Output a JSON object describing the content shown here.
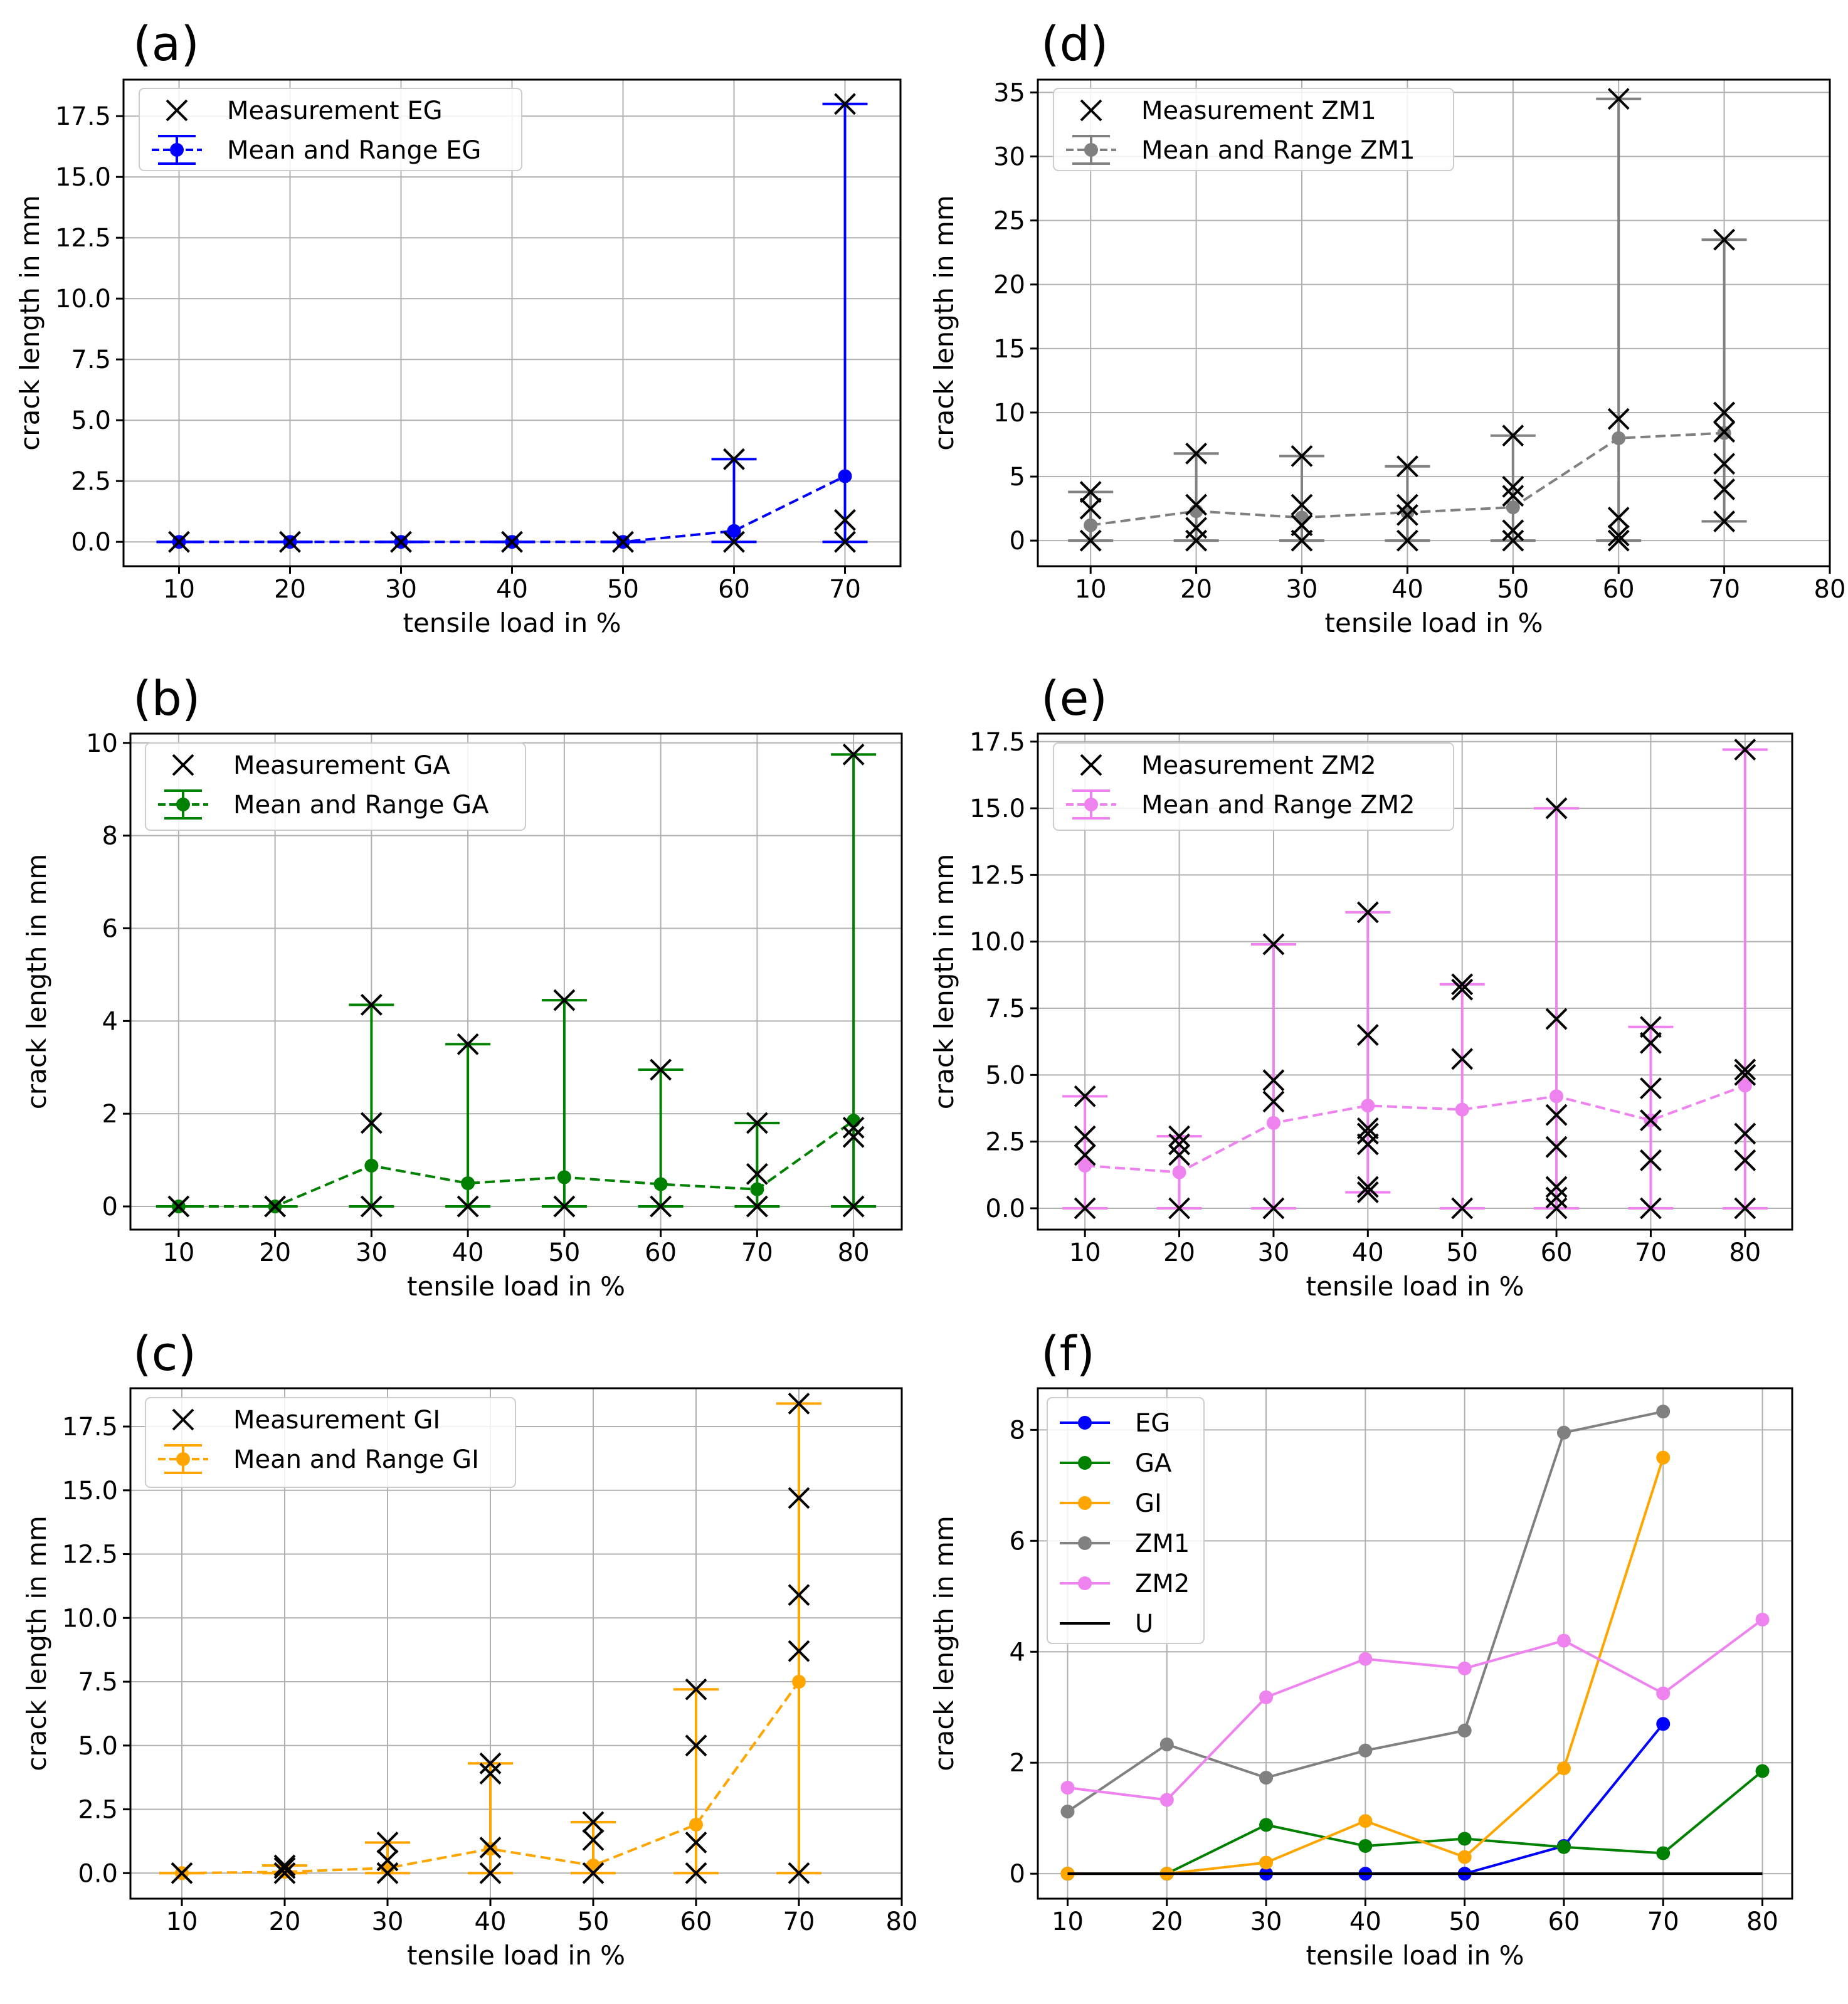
{
  "chart_data": [
    {
      "panel": "(a)",
      "type": "line",
      "xlabel": "tensile load in %",
      "ylabel": "crack length in mm",
      "xlim": [
        5,
        75
      ],
      "ylim": [
        -1.0,
        19.0
      ],
      "xticks": [
        10,
        20,
        30,
        40,
        50,
        60,
        70
      ],
      "yticks": [
        0.0,
        2.5,
        5.0,
        7.5,
        10.0,
        12.5,
        15.0,
        17.5
      ],
      "ytick_decimals": 1,
      "color": "#0000ff",
      "legend": {
        "measurement": "Measurement EG",
        "mean": "Mean and Range EG"
      },
      "x": [
        10,
        20,
        30,
        40,
        50,
        60,
        70
      ],
      "mean": [
        0,
        0,
        0,
        0,
        0,
        0.45,
        2.7
      ],
      "min": [
        0,
        0,
        0,
        0,
        0,
        0,
        0
      ],
      "max": [
        0,
        0,
        0,
        0,
        0,
        3.4,
        18.0
      ],
      "measurements": [
        [
          0
        ],
        [
          0
        ],
        [
          0
        ],
        [
          0
        ],
        [
          0
        ],
        [
          0,
          3.4
        ],
        [
          0,
          0.9,
          18.0
        ]
      ]
    },
    {
      "panel": "(d)",
      "type": "line",
      "xlabel": "tensile load in %",
      "ylabel": "crack length in mm",
      "xlim": [
        5,
        80
      ],
      "ylim": [
        -2.0,
        36.0
      ],
      "xticks": [
        10,
        20,
        30,
        40,
        50,
        60,
        70,
        80
      ],
      "yticks": [
        0,
        5,
        10,
        15,
        20,
        25,
        30,
        35
      ],
      "ytick_decimals": 0,
      "color": "#808080",
      "legend": {
        "measurement": "Measurement ZM1",
        "mean": "Mean and Range ZM1"
      },
      "x": [
        10,
        20,
        30,
        40,
        50,
        60,
        70
      ],
      "mean": [
        1.2,
        2.3,
        1.8,
        2.2,
        2.6,
        8.0,
        8.4
      ],
      "min": [
        0,
        0,
        0,
        0,
        0,
        0,
        1.5
      ],
      "max": [
        3.8,
        6.8,
        6.6,
        5.8,
        8.2,
        34.5,
        23.5
      ],
      "measurements": [
        [
          0,
          2.5,
          3.8
        ],
        [
          0,
          1.0,
          2.8,
          6.8
        ],
        [
          0,
          1.2,
          2.8,
          6.6
        ],
        [
          0,
          2.0,
          2.8,
          5.8
        ],
        [
          0,
          0.8,
          3.5,
          4.2,
          8.2
        ],
        [
          0,
          0.4,
          1.8,
          9.5,
          34.5
        ],
        [
          1.5,
          4.0,
          6.0,
          8.5,
          10.0,
          23.5
        ]
      ]
    },
    {
      "panel": "(b)",
      "type": "line",
      "xlabel": "tensile load in %",
      "ylabel": "crack length in mm",
      "xlim": [
        5,
        85
      ],
      "ylim": [
        -0.5,
        10.2
      ],
      "xticks": [
        10,
        20,
        30,
        40,
        50,
        60,
        70,
        80
      ],
      "yticks": [
        0,
        2,
        4,
        6,
        8,
        10
      ],
      "ytick_decimals": 0,
      "color": "#008000",
      "legend": {
        "measurement": "Measurement GA",
        "mean": "Mean and Range GA"
      },
      "x": [
        10,
        20,
        30,
        40,
        50,
        60,
        70,
        80
      ],
      "mean": [
        0,
        0,
        0.88,
        0.5,
        0.63,
        0.48,
        0.37,
        1.85
      ],
      "min": [
        0,
        0,
        0,
        0,
        0,
        0,
        0,
        0
      ],
      "max": [
        0,
        0,
        4.35,
        3.5,
        4.45,
        2.95,
        1.8,
        9.75
      ],
      "measurements": [
        [
          0
        ],
        [
          0
        ],
        [
          0,
          1.8,
          4.35
        ],
        [
          0,
          3.5
        ],
        [
          0,
          4.45
        ],
        [
          0,
          2.95
        ],
        [
          0,
          0.7,
          1.8
        ],
        [
          0,
          1.5,
          1.7,
          9.75
        ]
      ]
    },
    {
      "panel": "(e)",
      "type": "line",
      "xlabel": "tensile load in %",
      "ylabel": "crack length in mm",
      "xlim": [
        5,
        85
      ],
      "ylim": [
        -0.8,
        17.8
      ],
      "xticks": [
        10,
        20,
        30,
        40,
        50,
        60,
        70,
        80
      ],
      "yticks": [
        0.0,
        2.5,
        5.0,
        7.5,
        10.0,
        12.5,
        15.0,
        17.5
      ],
      "ytick_decimals": 1,
      "color": "#ee82ee",
      "legend": {
        "measurement": "Measurement ZM2",
        "mean": "Mean and Range ZM2"
      },
      "x": [
        10,
        20,
        30,
        40,
        50,
        60,
        70,
        80
      ],
      "mean": [
        1.6,
        1.35,
        3.2,
        3.85,
        3.7,
        4.2,
        3.3,
        4.6
      ],
      "min": [
        0,
        0,
        0,
        0.6,
        0,
        0,
        0,
        0
      ],
      "max": [
        4.2,
        2.7,
        9.9,
        11.1,
        8.4,
        15.0,
        6.8,
        17.2
      ],
      "measurements": [
        [
          0,
          2.0,
          2.7,
          4.2
        ],
        [
          0,
          2.0,
          2.4,
          2.7
        ],
        [
          0,
          4.0,
          4.8,
          9.9
        ],
        [
          0.6,
          0.8,
          2.4,
          2.8,
          3.0,
          6.5,
          11.1
        ],
        [
          0,
          5.6,
          8.2,
          8.4
        ],
        [
          0,
          0.4,
          0.8,
          2.3,
          3.5,
          7.1,
          15.0
        ],
        [
          0,
          1.8,
          3.3,
          4.5,
          6.2,
          6.8
        ],
        [
          0,
          1.8,
          2.8,
          5.0,
          5.2,
          17.2
        ]
      ]
    },
    {
      "panel": "(c)",
      "type": "line",
      "xlabel": "tensile load in %",
      "ylabel": "crack length in mm",
      "xlim": [
        5,
        80
      ],
      "ylim": [
        -1.0,
        19.0
      ],
      "xticks": [
        10,
        20,
        30,
        40,
        50,
        60,
        70,
        80
      ],
      "yticks": [
        0.0,
        2.5,
        5.0,
        7.5,
        10.0,
        12.5,
        15.0,
        17.5
      ],
      "ytick_decimals": 1,
      "color": "#ffa500",
      "legend": {
        "measurement": "Measurement GI",
        "mean": "Mean and Range GI"
      },
      "x": [
        10,
        20,
        30,
        40,
        50,
        60,
        70
      ],
      "mean": [
        0,
        0.05,
        0.2,
        0.95,
        0.3,
        1.9,
        7.5
      ],
      "min": [
        0,
        0,
        0,
        0,
        0,
        0,
        0
      ],
      "max": [
        0,
        0.3,
        1.2,
        4.3,
        2.0,
        7.2,
        18.4
      ],
      "measurements": [
        [
          0
        ],
        [
          0,
          0.2,
          0.3
        ],
        [
          0,
          0.5,
          1.2
        ],
        [
          0,
          1.0,
          3.9,
          4.3
        ],
        [
          0,
          1.3,
          2.0
        ],
        [
          0,
          1.2,
          5.0,
          7.2
        ],
        [
          0,
          8.7,
          10.9,
          14.7,
          18.4
        ]
      ]
    },
    {
      "panel": "(f)",
      "type": "line",
      "xlabel": "tensile load in %",
      "ylabel": "crack length in mm",
      "xlim": [
        7,
        83
      ],
      "ylim": [
        -0.45,
        8.75
      ],
      "xticks": [
        10,
        20,
        30,
        40,
        50,
        60,
        70,
        80
      ],
      "yticks": [
        0,
        2,
        4,
        6,
        8
      ],
      "ytick_decimals": 0,
      "series": [
        {
          "name": "EG",
          "color": "#0000ff",
          "x": [
            10,
            20,
            30,
            40,
            50,
            60,
            70
          ],
          "values": [
            0,
            0,
            0,
            0,
            0,
            0.5,
            2.7
          ]
        },
        {
          "name": "GA",
          "color": "#008000",
          "x": [
            10,
            20,
            30,
            40,
            50,
            60,
            70,
            80
          ],
          "values": [
            0,
            0,
            0.88,
            0.5,
            0.63,
            0.48,
            0.37,
            1.85
          ]
        },
        {
          "name": "GI",
          "color": "#ffa500",
          "x": [
            10,
            20,
            30,
            40,
            50,
            60,
            70
          ],
          "values": [
            0,
            0,
            0.2,
            0.95,
            0.3,
            1.9,
            7.5
          ]
        },
        {
          "name": "ZM1",
          "color": "#808080",
          "x": [
            10,
            20,
            30,
            40,
            50,
            60,
            70
          ],
          "values": [
            1.12,
            2.33,
            1.73,
            2.22,
            2.58,
            7.95,
            8.33
          ]
        },
        {
          "name": "ZM2",
          "color": "#ee82ee",
          "x": [
            10,
            20,
            30,
            40,
            50,
            60,
            70,
            80
          ],
          "values": [
            1.55,
            1.33,
            3.18,
            3.87,
            3.7,
            4.2,
            3.25,
            4.58
          ]
        },
        {
          "name": "U",
          "color": "#000000",
          "x": [
            10,
            80
          ],
          "values": [
            0,
            0
          ]
        }
      ]
    }
  ]
}
